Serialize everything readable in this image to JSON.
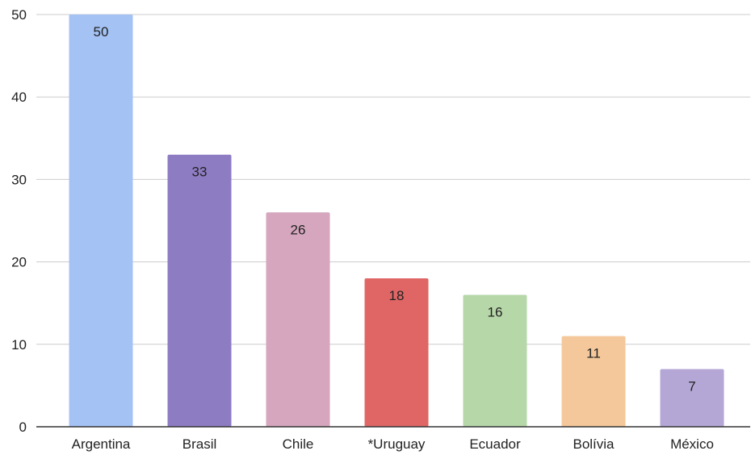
{
  "chart_data": {
    "type": "bar",
    "title": "",
    "xlabel": "",
    "ylabel": "",
    "categories": [
      "Argentina",
      "Brasil",
      "Chile",
      "*Uruguay",
      "Ecuador",
      "Bolívia",
      "México"
    ],
    "values": [
      50,
      33,
      26,
      18,
      16,
      11,
      7
    ],
    "data_labels": [
      "50",
      "33",
      "26",
      "18",
      "16",
      "11",
      "7"
    ],
    "colors": [
      "#a4c2f4",
      "#8e7cc3",
      "#d5a6bd",
      "#e06666",
      "#b6d7a8",
      "#f4c89a",
      "#b4a7d6"
    ],
    "ylim": [
      0,
      50
    ],
    "yticks": [
      0,
      10,
      20,
      30,
      40,
      50
    ],
    "ytick_labels": [
      "0",
      "10",
      "20",
      "30",
      "40",
      "50"
    ],
    "grid": true,
    "legend": "none"
  }
}
